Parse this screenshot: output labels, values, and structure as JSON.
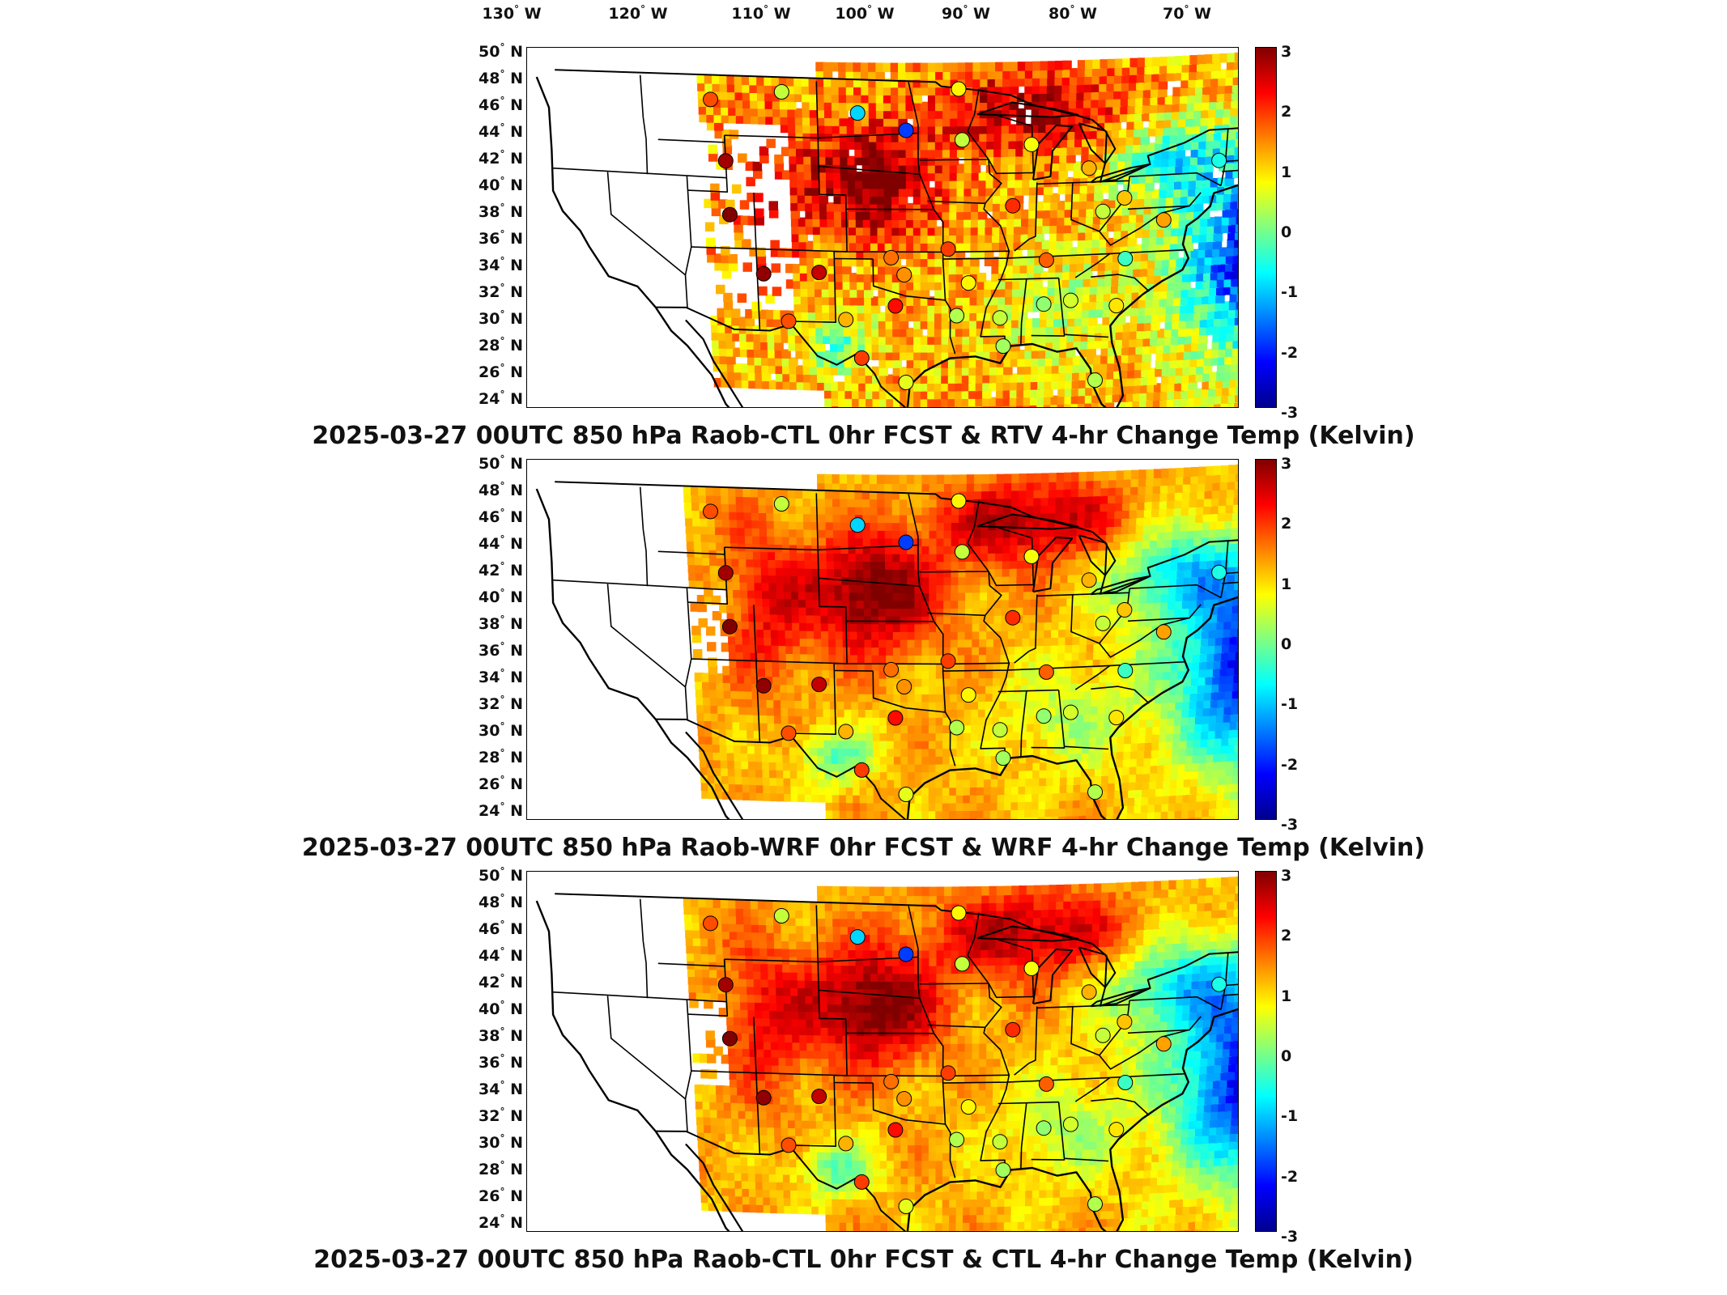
{
  "lon_labels": [
    {
      "deg": "130",
      "hemi": "W"
    },
    {
      "deg": "120",
      "hemi": "W"
    },
    {
      "deg": "110",
      "hemi": "W"
    },
    {
      "deg": "100",
      "hemi": "W"
    },
    {
      "deg": "90",
      "hemi": "W"
    },
    {
      "deg": "80",
      "hemi": "W"
    },
    {
      "deg": "70",
      "hemi": "W"
    }
  ],
  "lat_labels": [
    {
      "deg": "50",
      "hemi": "N"
    },
    {
      "deg": "48",
      "hemi": "N"
    },
    {
      "deg": "46",
      "hemi": "N"
    },
    {
      "deg": "44",
      "hemi": "N"
    },
    {
      "deg": "42",
      "hemi": "N"
    },
    {
      "deg": "40",
      "hemi": "N"
    },
    {
      "deg": "38",
      "hemi": "N"
    },
    {
      "deg": "36",
      "hemi": "N"
    },
    {
      "deg": "34",
      "hemi": "N"
    },
    {
      "deg": "32",
      "hemi": "N"
    },
    {
      "deg": "30",
      "hemi": "N"
    },
    {
      "deg": "28",
      "hemi": "N"
    },
    {
      "deg": "26",
      "hemi": "N"
    },
    {
      "deg": "24",
      "hemi": "N"
    }
  ],
  "colorbar": {
    "ticks": [
      "3",
      "2",
      "1",
      "0",
      "-1",
      "-2",
      "-3"
    ],
    "min": -3,
    "max": 3,
    "colormap": [
      "#00008f",
      "#0000ff",
      "#0080ff",
      "#00ffff",
      "#80ff80",
      "#ffff00",
      "#ff8000",
      "#ff0000",
      "#800000"
    ]
  },
  "panels": [
    {
      "title": "2025-03-27 00UTC 850 hPa Raob-CTL 0hr FCST & RTV 4-hr Change Temp (Kelvin)"
    },
    {
      "title": "2025-03-27 00UTC 850 hPa Raob-WRF 0hr FCST & WRF 4-hr Change Temp (Kelvin)"
    },
    {
      "title": "2025-03-27 00UTC 850 hPa Raob-CTL 0hr FCST & CTL 4-hr Change Temp (Kelvin)"
    }
  ],
  "raob_stations": [
    {
      "lon": -111.9,
      "lat": 47.5,
      "value": 1.8
    },
    {
      "lon": -106.6,
      "lat": 48.2,
      "value": 0.4
    },
    {
      "lon": -101.0,
      "lat": 46.8,
      "value": -1.0
    },
    {
      "lon": -97.4,
      "lat": 45.6,
      "value": -1.9
    },
    {
      "lon": -93.5,
      "lat": 48.5,
      "value": 0.8
    },
    {
      "lon": -111.0,
      "lat": 43.2,
      "value": 2.8
    },
    {
      "lon": -110.9,
      "lat": 39.4,
      "value": 3.0
    },
    {
      "lon": -108.5,
      "lat": 35.3,
      "value": 2.9
    },
    {
      "lon": -104.2,
      "lat": 35.5,
      "value": 2.6
    },
    {
      "lon": -106.7,
      "lat": 32.0,
      "value": 1.8
    },
    {
      "lon": -102.2,
      "lat": 32.2,
      "value": 1.2
    },
    {
      "lon": -101.0,
      "lat": 29.5,
      "value": 1.9
    },
    {
      "lon": -97.5,
      "lat": 27.8,
      "value": 0.6
    },
    {
      "lon": -98.3,
      "lat": 33.2,
      "value": 2.2
    },
    {
      "lon": -97.6,
      "lat": 35.4,
      "value": 1.4
    },
    {
      "lon": -98.6,
      "lat": 36.6,
      "value": 1.6
    },
    {
      "lon": -94.2,
      "lat": 37.2,
      "value": 1.9
    },
    {
      "lon": -92.6,
      "lat": 34.8,
      "value": 0.8
    },
    {
      "lon": -93.5,
      "lat": 32.5,
      "value": 0.3
    },
    {
      "lon": -90.1,
      "lat": 32.3,
      "value": 0.4
    },
    {
      "lon": -89.8,
      "lat": 30.3,
      "value": 0.2
    },
    {
      "lon": -93.2,
      "lat": 44.9,
      "value": 0.4
    },
    {
      "lon": -88.0,
      "lat": 44.5,
      "value": 0.7
    },
    {
      "lon": -89.3,
      "lat": 40.2,
      "value": 2.0
    },
    {
      "lon": -86.6,
      "lat": 36.3,
      "value": 1.7
    },
    {
      "lon": -86.7,
      "lat": 33.2,
      "value": 0.1
    },
    {
      "lon": -84.6,
      "lat": 33.4,
      "value": 0.5
    },
    {
      "lon": -82.4,
      "lat": 39.6,
      "value": 0.4
    },
    {
      "lon": -80.8,
      "lat": 40.5,
      "value": 1.1
    },
    {
      "lon": -77.7,
      "lat": 38.8,
      "value": 1.3
    },
    {
      "lon": -80.5,
      "lat": 36.2,
      "value": -0.4
    },
    {
      "lon": -81.0,
      "lat": 32.9,
      "value": 0.9
    },
    {
      "lon": -82.4,
      "lat": 27.7,
      "value": 0.3
    },
    {
      "lon": -83.6,
      "lat": 42.7,
      "value": 1.2
    },
    {
      "lon": -73.8,
      "lat": 42.8,
      "value": -0.6
    },
    {
      "lon": -70.3,
      "lat": 43.9,
      "value": 0.7
    }
  ]
}
